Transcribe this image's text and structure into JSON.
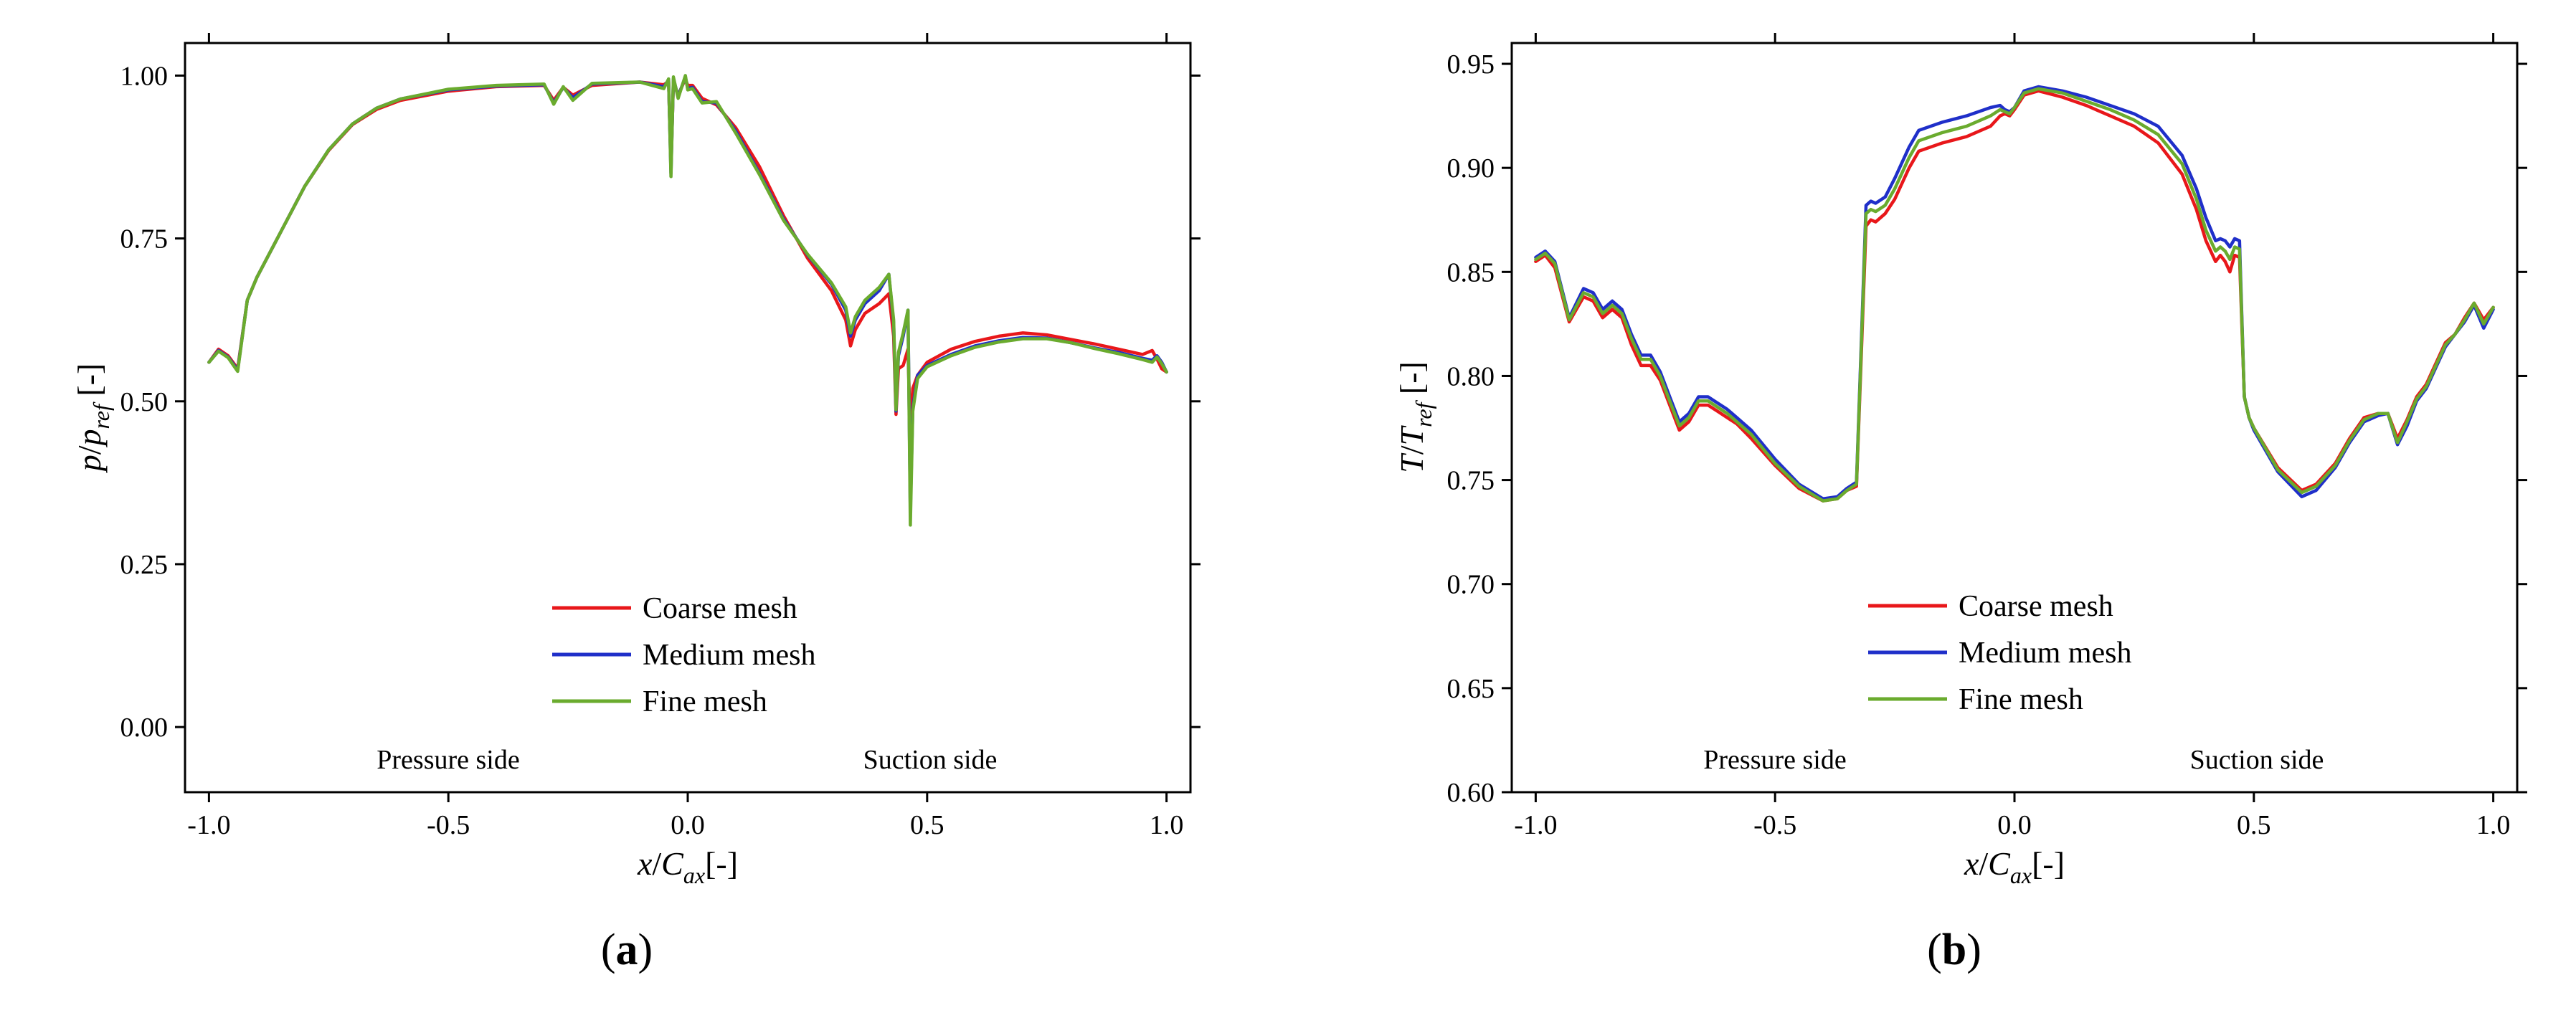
{
  "colors": {
    "coarse": "#e8171a",
    "medium": "#1f2fc9",
    "fine": "#6aab2e"
  },
  "chart_data": [
    {
      "type": "line",
      "panel_label": "a",
      "xlabel": "x/C_ax[-]",
      "ylabel": "p/p_ref [-]",
      "xlim": [
        -1.05,
        1.05
      ],
      "ylim": [
        -0.1,
        1.05
      ],
      "xticks": [
        -1.0,
        -0.5,
        0.0,
        0.5,
        1.0
      ],
      "xtick_labels": [
        "-1.0",
        "-0.5",
        "0.0",
        "0.5",
        "1.0"
      ],
      "yticks": [
        0.0,
        0.25,
        0.5,
        0.75,
        1.0
      ],
      "ytick_labels": [
        "0.00",
        "0.25",
        "0.50",
        "0.75",
        "1.00"
      ],
      "legend_position": "bottom-center",
      "annotations": {
        "left": "Pressure side",
        "right": "Suction side"
      },
      "series": [
        {
          "name": "Coarse mesh",
          "color_key": "coarse",
          "x": [
            -1.0,
            -0.98,
            -0.96,
            -0.94,
            -0.92,
            -0.9,
            -0.85,
            -0.8,
            -0.75,
            -0.7,
            -0.65,
            -0.6,
            -0.5,
            -0.4,
            -0.3,
            -0.28,
            -0.26,
            -0.24,
            -0.2,
            -0.1,
            -0.05,
            -0.04,
            -0.035,
            -0.03,
            -0.02,
            -0.005,
            0.0,
            0.01,
            0.03,
            0.06,
            0.1,
            0.15,
            0.2,
            0.25,
            0.3,
            0.33,
            0.34,
            0.35,
            0.37,
            0.4,
            0.42,
            0.43,
            0.435,
            0.44,
            0.45,
            0.46,
            0.465,
            0.47,
            0.48,
            0.5,
            0.55,
            0.6,
            0.65,
            0.7,
            0.75,
            0.8,
            0.85,
            0.9,
            0.95,
            0.97,
            0.98,
            0.99,
            1.0
          ],
          "y": [
            0.56,
            0.58,
            0.57,
            0.55,
            0.655,
            0.69,
            0.76,
            0.83,
            0.885,
            0.925,
            0.948,
            0.962,
            0.976,
            0.983,
            0.985,
            0.962,
            0.982,
            0.97,
            0.985,
            0.99,
            0.986,
            0.991,
            0.86,
            0.99,
            0.97,
            0.995,
            0.985,
            0.985,
            0.965,
            0.955,
            0.92,
            0.86,
            0.785,
            0.72,
            0.67,
            0.625,
            0.585,
            0.61,
            0.635,
            0.65,
            0.665,
            0.6,
            0.48,
            0.55,
            0.555,
            0.58,
            0.45,
            0.52,
            0.54,
            0.56,
            0.58,
            0.592,
            0.6,
            0.605,
            0.602,
            0.595,
            0.588,
            0.58,
            0.572,
            0.578,
            0.565,
            0.55,
            0.545
          ]
        },
        {
          "name": "Medium mesh",
          "color_key": "medium",
          "x": [
            -1.0,
            -0.98,
            -0.96,
            -0.94,
            -0.92,
            -0.9,
            -0.85,
            -0.8,
            -0.75,
            -0.7,
            -0.65,
            -0.6,
            -0.5,
            -0.4,
            -0.3,
            -0.28,
            -0.26,
            -0.24,
            -0.2,
            -0.1,
            -0.05,
            -0.04,
            -0.035,
            -0.03,
            -0.02,
            -0.005,
            0.0,
            0.01,
            0.03,
            0.06,
            0.1,
            0.15,
            0.2,
            0.25,
            0.3,
            0.33,
            0.34,
            0.35,
            0.37,
            0.4,
            0.42,
            0.43,
            0.435,
            0.44,
            0.45,
            0.46,
            0.465,
            0.47,
            0.48,
            0.5,
            0.55,
            0.6,
            0.65,
            0.7,
            0.75,
            0.8,
            0.85,
            0.9,
            0.95,
            0.97,
            0.98,
            0.99,
            1.0
          ],
          "y": [
            0.56,
            0.578,
            0.568,
            0.548,
            0.655,
            0.69,
            0.76,
            0.83,
            0.886,
            0.926,
            0.95,
            0.964,
            0.978,
            0.984,
            0.986,
            0.958,
            0.982,
            0.966,
            0.987,
            0.99,
            0.983,
            0.993,
            0.85,
            0.995,
            0.968,
            0.998,
            0.98,
            0.982,
            0.96,
            0.958,
            0.915,
            0.85,
            0.78,
            0.725,
            0.68,
            0.64,
            0.6,
            0.625,
            0.65,
            0.67,
            0.695,
            0.62,
            0.485,
            0.57,
            0.6,
            0.64,
            0.33,
            0.49,
            0.54,
            0.555,
            0.572,
            0.585,
            0.593,
            0.598,
            0.597,
            0.59,
            0.582,
            0.575,
            0.566,
            0.563,
            0.57,
            0.56,
            0.545
          ]
        },
        {
          "name": "Fine mesh",
          "color_key": "fine",
          "x": [
            -1.0,
            -0.98,
            -0.96,
            -0.94,
            -0.92,
            -0.9,
            -0.85,
            -0.8,
            -0.75,
            -0.7,
            -0.65,
            -0.6,
            -0.5,
            -0.4,
            -0.3,
            -0.28,
            -0.26,
            -0.24,
            -0.2,
            -0.1,
            -0.05,
            -0.04,
            -0.035,
            -0.03,
            -0.02,
            -0.005,
            0.0,
            0.01,
            0.03,
            0.06,
            0.1,
            0.15,
            0.2,
            0.25,
            0.3,
            0.33,
            0.34,
            0.35,
            0.37,
            0.4,
            0.42,
            0.43,
            0.435,
            0.44,
            0.45,
            0.46,
            0.465,
            0.47,
            0.48,
            0.5,
            0.55,
            0.6,
            0.65,
            0.7,
            0.75,
            0.8,
            0.85,
            0.9,
            0.95,
            0.97,
            0.98,
            0.99,
            1.0
          ],
          "y": [
            0.56,
            0.577,
            0.567,
            0.546,
            0.655,
            0.69,
            0.76,
            0.83,
            0.886,
            0.926,
            0.95,
            0.964,
            0.979,
            0.985,
            0.987,
            0.956,
            0.983,
            0.962,
            0.988,
            0.99,
            0.98,
            0.995,
            0.845,
            0.998,
            0.965,
            1.0,
            0.978,
            0.98,
            0.958,
            0.96,
            0.912,
            0.848,
            0.778,
            0.726,
            0.682,
            0.645,
            0.605,
            0.63,
            0.655,
            0.675,
            0.695,
            0.625,
            0.487,
            0.575,
            0.605,
            0.64,
            0.31,
            0.485,
            0.535,
            0.553,
            0.57,
            0.583,
            0.591,
            0.596,
            0.596,
            0.59,
            0.581,
            0.573,
            0.564,
            0.56,
            0.568,
            0.558,
            0.545
          ]
        }
      ]
    },
    {
      "type": "line",
      "panel_label": "b",
      "xlabel": "x/C_ax[-]",
      "ylabel": "T/T_ref [-]",
      "xlim": [
        -1.05,
        1.05
      ],
      "ylim": [
        0.6,
        0.96
      ],
      "xticks": [
        -1.0,
        -0.5,
        0.0,
        0.5,
        1.0
      ],
      "xtick_labels": [
        "-1.0",
        "-0.5",
        "0.0",
        "0.5",
        "1.0"
      ],
      "yticks": [
        0.6,
        0.65,
        0.7,
        0.75,
        0.8,
        0.85,
        0.9,
        0.95
      ],
      "ytick_labels": [
        "0.60",
        "0.65",
        "0.70",
        "0.75",
        "0.80",
        "0.85",
        "0.90",
        "0.95"
      ],
      "legend_position": "bottom-center",
      "annotations": {
        "left": "Pressure side",
        "right": "Suction side"
      },
      "series": [
        {
          "name": "Coarse mesh",
          "color_key": "coarse",
          "x": [
            -1.0,
            -0.98,
            -0.96,
            -0.93,
            -0.9,
            -0.88,
            -0.86,
            -0.84,
            -0.82,
            -0.8,
            -0.78,
            -0.76,
            -0.74,
            -0.72,
            -0.7,
            -0.68,
            -0.66,
            -0.64,
            -0.62,
            -0.6,
            -0.58,
            -0.55,
            -0.5,
            -0.45,
            -0.4,
            -0.37,
            -0.35,
            -0.33,
            -0.31,
            -0.3,
            -0.29,
            -0.27,
            -0.25,
            -0.22,
            -0.2,
            -0.15,
            -0.1,
            -0.05,
            -0.03,
            -0.02,
            -0.01,
            0.0,
            0.02,
            0.05,
            0.1,
            0.15,
            0.2,
            0.25,
            0.3,
            0.35,
            0.38,
            0.4,
            0.42,
            0.43,
            0.44,
            0.45,
            0.46,
            0.47,
            0.48,
            0.49,
            0.5,
            0.55,
            0.6,
            0.63,
            0.67,
            0.7,
            0.73,
            0.76,
            0.78,
            0.8,
            0.82,
            0.84,
            0.86,
            0.88,
            0.9,
            0.92,
            0.94,
            0.96,
            0.98,
            1.0
          ],
          "y": [
            0.855,
            0.858,
            0.852,
            0.826,
            0.838,
            0.836,
            0.828,
            0.832,
            0.828,
            0.815,
            0.805,
            0.805,
            0.798,
            0.786,
            0.774,
            0.778,
            0.786,
            0.786,
            0.783,
            0.78,
            0.777,
            0.77,
            0.757,
            0.746,
            0.74,
            0.741,
            0.745,
            0.747,
            0.872,
            0.875,
            0.874,
            0.878,
            0.885,
            0.9,
            0.908,
            0.912,
            0.915,
            0.92,
            0.925,
            0.926,
            0.925,
            0.928,
            0.935,
            0.937,
            0.934,
            0.93,
            0.925,
            0.92,
            0.912,
            0.897,
            0.88,
            0.865,
            0.855,
            0.858,
            0.855,
            0.85,
            0.858,
            0.857,
            0.79,
            0.78,
            0.775,
            0.756,
            0.745,
            0.748,
            0.758,
            0.77,
            0.78,
            0.782,
            0.782,
            0.77,
            0.779,
            0.79,
            0.796,
            0.806,
            0.816,
            0.82,
            0.828,
            0.835,
            0.827,
            0.833
          ]
        },
        {
          "name": "Medium mesh",
          "color_key": "medium",
          "x": [
            -1.0,
            -0.98,
            -0.96,
            -0.93,
            -0.9,
            -0.88,
            -0.86,
            -0.84,
            -0.82,
            -0.8,
            -0.78,
            -0.76,
            -0.74,
            -0.72,
            -0.7,
            -0.68,
            -0.66,
            -0.64,
            -0.62,
            -0.6,
            -0.58,
            -0.55,
            -0.5,
            -0.45,
            -0.4,
            -0.37,
            -0.35,
            -0.33,
            -0.31,
            -0.3,
            -0.29,
            -0.27,
            -0.25,
            -0.22,
            -0.2,
            -0.15,
            -0.1,
            -0.05,
            -0.03,
            -0.02,
            -0.01,
            0.0,
            0.02,
            0.05,
            0.1,
            0.15,
            0.2,
            0.25,
            0.3,
            0.35,
            0.38,
            0.4,
            0.42,
            0.43,
            0.44,
            0.45,
            0.46,
            0.47,
            0.48,
            0.49,
            0.5,
            0.55,
            0.6,
            0.63,
            0.67,
            0.7,
            0.73,
            0.76,
            0.78,
            0.8,
            0.82,
            0.84,
            0.86,
            0.88,
            0.9,
            0.92,
            0.94,
            0.96,
            0.98,
            1.0
          ],
          "y": [
            0.857,
            0.86,
            0.855,
            0.828,
            0.842,
            0.84,
            0.832,
            0.836,
            0.832,
            0.82,
            0.81,
            0.81,
            0.802,
            0.79,
            0.778,
            0.782,
            0.79,
            0.79,
            0.787,
            0.784,
            0.78,
            0.774,
            0.76,
            0.748,
            0.741,
            0.742,
            0.746,
            0.749,
            0.882,
            0.884,
            0.883,
            0.886,
            0.895,
            0.91,
            0.918,
            0.922,
            0.925,
            0.929,
            0.93,
            0.928,
            0.927,
            0.929,
            0.937,
            0.939,
            0.937,
            0.934,
            0.93,
            0.926,
            0.92,
            0.906,
            0.89,
            0.876,
            0.865,
            0.866,
            0.865,
            0.862,
            0.866,
            0.865,
            0.79,
            0.78,
            0.774,
            0.754,
            0.742,
            0.745,
            0.756,
            0.768,
            0.778,
            0.781,
            0.782,
            0.767,
            0.776,
            0.788,
            0.794,
            0.804,
            0.814,
            0.82,
            0.826,
            0.834,
            0.823,
            0.832
          ]
        },
        {
          "name": "Fine mesh",
          "color_key": "fine",
          "x": [
            -1.0,
            -0.98,
            -0.96,
            -0.93,
            -0.9,
            -0.88,
            -0.86,
            -0.84,
            -0.82,
            -0.8,
            -0.78,
            -0.76,
            -0.74,
            -0.72,
            -0.7,
            -0.68,
            -0.66,
            -0.64,
            -0.62,
            -0.6,
            -0.58,
            -0.55,
            -0.5,
            -0.45,
            -0.4,
            -0.37,
            -0.35,
            -0.33,
            -0.31,
            -0.3,
            -0.29,
            -0.27,
            -0.25,
            -0.22,
            -0.2,
            -0.15,
            -0.1,
            -0.05,
            -0.03,
            -0.02,
            -0.01,
            0.0,
            0.02,
            0.05,
            0.1,
            0.15,
            0.2,
            0.25,
            0.3,
            0.35,
            0.38,
            0.4,
            0.42,
            0.43,
            0.44,
            0.45,
            0.46,
            0.47,
            0.48,
            0.49,
            0.5,
            0.55,
            0.6,
            0.63,
            0.67,
            0.7,
            0.73,
            0.76,
            0.78,
            0.8,
            0.82,
            0.84,
            0.86,
            0.88,
            0.9,
            0.92,
            0.94,
            0.96,
            0.98,
            1.0
          ],
          "y": [
            0.856,
            0.859,
            0.854,
            0.827,
            0.84,
            0.838,
            0.83,
            0.834,
            0.83,
            0.818,
            0.808,
            0.808,
            0.8,
            0.788,
            0.776,
            0.78,
            0.788,
            0.788,
            0.785,
            0.782,
            0.778,
            0.772,
            0.758,
            0.747,
            0.74,
            0.741,
            0.745,
            0.748,
            0.878,
            0.88,
            0.879,
            0.882,
            0.89,
            0.905,
            0.913,
            0.917,
            0.92,
            0.925,
            0.928,
            0.927,
            0.926,
            0.929,
            0.936,
            0.938,
            0.936,
            0.932,
            0.928,
            0.923,
            0.916,
            0.902,
            0.885,
            0.87,
            0.86,
            0.862,
            0.86,
            0.856,
            0.862,
            0.861,
            0.79,
            0.78,
            0.775,
            0.755,
            0.744,
            0.747,
            0.757,
            0.769,
            0.779,
            0.782,
            0.782,
            0.768,
            0.778,
            0.789,
            0.795,
            0.805,
            0.815,
            0.82,
            0.827,
            0.835,
            0.825,
            0.833
          ]
        }
      ]
    }
  ]
}
